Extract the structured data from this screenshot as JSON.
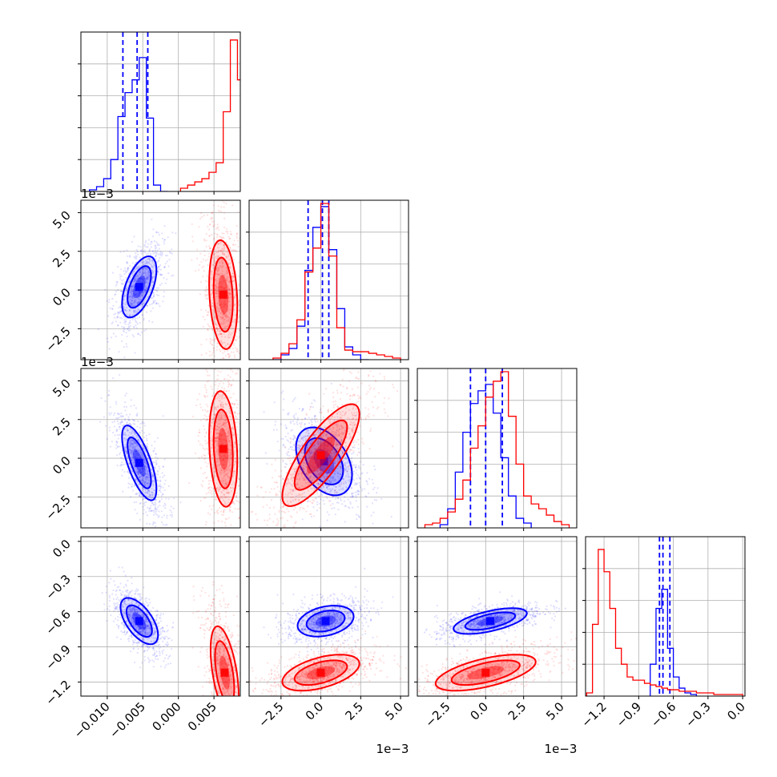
{
  "chart_data": {
    "type": "corner-plot",
    "grid": true,
    "series": [
      {
        "color": "#0000ff",
        "hist_style": "step",
        "quantile_lines": "dashed",
        "marginals": [
          {
            "param": 0,
            "bins": [
              -0.0125,
              -0.0115,
              -0.0105,
              -0.0095,
              -0.0085,
              -0.0075,
              -0.0065,
              -0.0055,
              -0.0045,
              -0.0035,
              -0.0025,
              -0.0015
            ],
            "counts": [
              0.01,
              0.03,
              0.08,
              0.2,
              0.47,
              0.62,
              0.7,
              0.84,
              0.46,
              0.04,
              0.0
            ]
          },
          {
            "param": 1,
            "bins": [
              -0.003,
              -0.0025,
              -0.002,
              -0.0015,
              -0.001,
              -0.0005,
              0.0,
              0.0005,
              0.001,
              0.0015,
              0.002,
              0.0025,
              0.003
            ],
            "counts": [
              0.0,
              0.03,
              0.07,
              0.21,
              0.56,
              0.83,
              0.96,
              0.69,
              0.32,
              0.08,
              0.03,
              0.0
            ]
          },
          {
            "param": 2,
            "bins": [
              -0.003,
              -0.0025,
              -0.002,
              -0.0015,
              -0.001,
              -0.0005,
              0.0,
              0.0005,
              0.001,
              0.0015,
              0.002,
              0.0025,
              0.003
            ],
            "counts": [
              0.02,
              0.12,
              0.35,
              0.6,
              0.78,
              0.86,
              0.9,
              0.72,
              0.44,
              0.2,
              0.06,
              0.03
            ]
          },
          {
            "param": 3,
            "bins": [
              -0.8,
              -0.75,
              -0.7,
              -0.65,
              -0.6,
              -0.55,
              -0.5,
              -0.45,
              -0.4
            ],
            "counts": [
              0.2,
              0.55,
              0.67,
              0.3,
              0.12,
              0.05,
              0.02,
              0.01
            ]
          }
        ],
        "quantiles": [
          [
            -0.0078,
            -0.0058,
            -0.0043
          ],
          [
            -0.0008,
            0.0001,
            0.0005
          ],
          [
            -0.001,
            0.0,
            0.0011
          ],
          [
            -0.72,
            -0.69,
            -0.63
          ]
        ],
        "scatter_centers": [
          [
            -0.0055,
            0.0005
          ],
          [
            -0.0055,
            -0.0005
          ],
          [
            -0.0055,
            -0.68
          ],
          [
            0.0002,
            -0.0002
          ],
          [
            0.0003,
            -0.68
          ],
          [
            0.0002,
            -0.68
          ]
        ]
      },
      {
        "color": "#ff0000",
        "hist_style": "step",
        "marginals": [
          {
            "param": 0,
            "bins": [
              0.0003,
              0.0013,
              0.0023,
              0.0033,
              0.0043,
              0.0053,
              0.0063,
              0.0073,
              0.0083,
              0.0093
            ],
            "counts": [
              0.02,
              0.04,
              0.06,
              0.08,
              0.12,
              0.18,
              0.5,
              0.95,
              0.7
            ]
          },
          {
            "param": 1,
            "bins": [
              -0.003,
              -0.0025,
              -0.002,
              -0.0015,
              -0.001,
              -0.0005,
              0.0,
              0.0005,
              0.001,
              0.0015,
              0.002,
              0.0025,
              0.003,
              0.0035,
              0.004,
              0.0045,
              0.005
            ],
            "counts": [
              0.01,
              0.04,
              0.1,
              0.25,
              0.55,
              0.7,
              0.98,
              0.65,
              0.2,
              0.06,
              0.05,
              0.05,
              0.04,
              0.03,
              0.02,
              0.01
            ]
          },
          {
            "param": 2,
            "bins": [
              -0.004,
              -0.0035,
              -0.003,
              -0.0025,
              -0.002,
              -0.0015,
              -0.001,
              -0.0005,
              0.0,
              0.0005,
              0.001,
              0.0015,
              0.002,
              0.0025,
              0.003,
              0.0035,
              0.004,
              0.0045,
              0.005,
              0.0055
            ],
            "counts": [
              0.02,
              0.03,
              0.06,
              0.1,
              0.18,
              0.3,
              0.5,
              0.64,
              0.82,
              0.92,
              0.98,
              0.7,
              0.4,
              0.2,
              0.15,
              0.12,
              0.08,
              0.04,
              0.02
            ]
          },
          {
            "param": 3,
            "bins": [
              -1.35,
              -1.3,
              -1.25,
              -1.2,
              -1.15,
              -1.1,
              -1.05,
              -1.0,
              -0.95,
              -0.9,
              -0.85,
              -0.8,
              -0.75,
              -0.7,
              -0.65,
              -0.6,
              -0.55,
              -0.5,
              -0.45,
              -0.4,
              -0.35,
              -0.3,
              -0.25,
              -0.2,
              -0.15,
              -0.1,
              -0.05,
              0.0
            ],
            "counts": [
              0.02,
              0.45,
              0.92,
              0.78,
              0.55,
              0.3,
              0.2,
              0.12,
              0.1,
              0.1,
              0.08,
              0.07,
              0.06,
              0.05,
              0.04,
              0.04,
              0.03,
              0.03,
              0.03,
              0.02,
              0.02,
              0.02,
              0.01,
              0.01,
              0.01,
              0.01,
              0.01
            ]
          }
        ],
        "scatter_centers": [
          [
            0.0062,
            -0.0005
          ],
          [
            0.0062,
            0.0005
          ],
          [
            0.0062,
            -1.15
          ],
          [
            0.0,
            0.0
          ],
          [
            0.0,
            -1.15
          ],
          [
            0.0,
            -1.15
          ]
        ]
      }
    ],
    "axes": {
      "x_ranges": [
        [
          -0.0137,
          0.0087
        ],
        [
          -0.0045,
          0.0055
        ],
        [
          -0.0045,
          0.006
        ],
        [
          -1.36,
          0.02
        ]
      ],
      "y_ranges": [
        null,
        [
          -0.0045,
          0.0058
        ],
        [
          -0.0045,
          0.0058
        ],
        [
          -1.32,
          0.04
        ]
      ],
      "x_ticks": [
        [
          -0.01,
          -0.005,
          0.0,
          0.005
        ],
        [
          -2.5,
          0.0,
          2.5,
          5.0
        ],
        [
          -2.5,
          0.0,
          2.5,
          5.0
        ],
        [
          -1.2,
          -0.9,
          -0.6,
          -0.3,
          0.0
        ]
      ],
      "x_tick_labels": [
        [
          "−0.010",
          "−0.005",
          "0.000",
          "0.005"
        ],
        [
          "−2.5",
          "0.0",
          "2.5",
          "5.0"
        ],
        [
          "−2.5",
          "0.0",
          "2.5",
          "5.0"
        ],
        [
          "−1.2",
          "−0.9",
          "−0.6",
          "−0.3",
          "0.0"
        ]
      ],
      "y_tick_labels": [
        [],
        [
          "−2.5",
          "0.0",
          "2.5",
          "5.0"
        ],
        [
          "−2.5",
          "0.0",
          "2.5",
          "5.0"
        ],
        [
          "−1.2",
          "−0.9",
          "−0.6",
          "−0.3",
          "0.0"
        ]
      ],
      "offset_text": "1e−3"
    }
  }
}
